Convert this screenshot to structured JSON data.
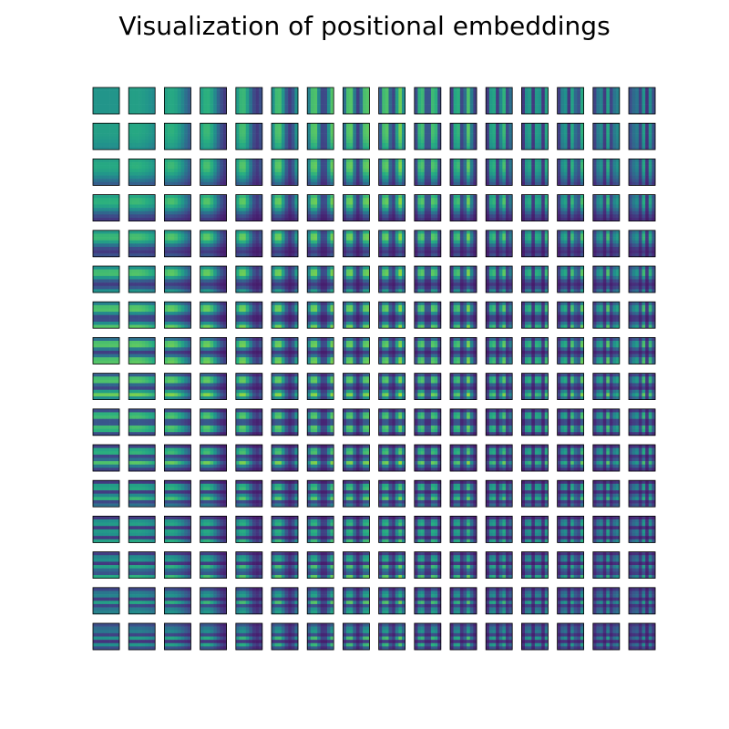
{
  "chart_data": {
    "type": "heatmap",
    "title": "Visualization of positional embeddings",
    "subtitle": "",
    "xlabel": "",
    "ylabel": "",
    "grid": {
      "rows": 16,
      "cols": 16
    },
    "cell_resolution": {
      "rows": 8,
      "cols": 8
    },
    "colormap": "viridis",
    "value_range": [
      0,
      1
    ],
    "ticks_visible": false,
    "colors": {
      "low": "#440154",
      "mid": "#21918c",
      "high": "#fde725",
      "frame": "#000000",
      "background": "#ffffff"
    }
  }
}
